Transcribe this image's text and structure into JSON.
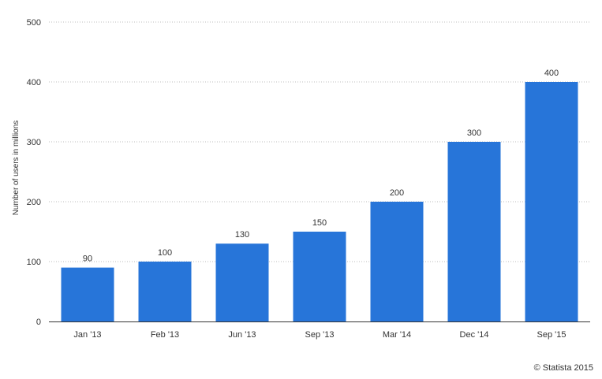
{
  "chart_data": {
    "type": "bar",
    "categories": [
      "Jan '13",
      "Feb '13",
      "Jun '13",
      "Sep '13",
      "Mar '14",
      "Dec '14",
      "Sep '15"
    ],
    "values": [
      90,
      100,
      130,
      150,
      200,
      300,
      400
    ],
    "ylabel": "Number of users in millions",
    "ylim": [
      0,
      500
    ],
    "yticks": [
      0,
      100,
      200,
      300,
      400,
      500
    ],
    "grid": true,
    "bar_color": "#2775d9",
    "show_data_labels": true
  },
  "credit": "© Statista 2015"
}
